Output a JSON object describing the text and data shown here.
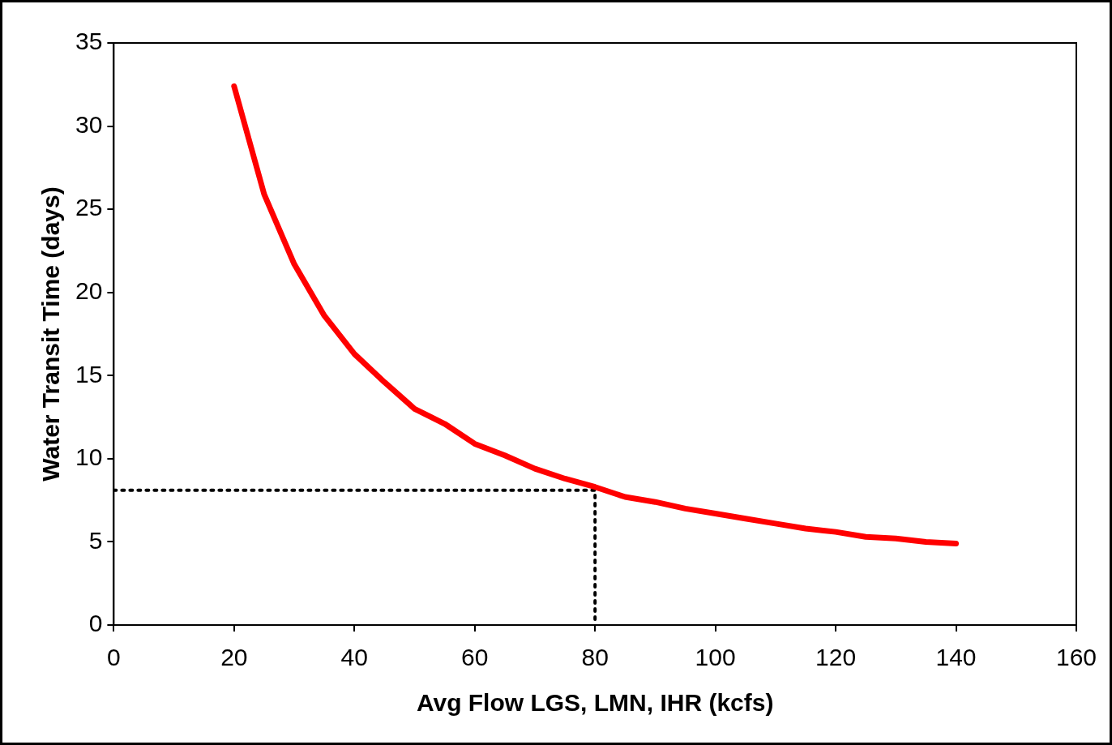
{
  "chart_data": {
    "type": "line",
    "xlabel": "Avg Flow LGS, LMN, IHR (kcfs)",
    "ylabel": "Water Transit Time (days)",
    "xlim": [
      0,
      160
    ],
    "xticks": [
      0,
      20,
      40,
      60,
      80,
      100,
      120,
      140,
      160
    ],
    "ylim": [
      0,
      35
    ],
    "yticks": [
      0,
      5,
      10,
      15,
      20,
      25,
      30,
      35
    ],
    "marker": "none",
    "legend": false,
    "series": [
      {
        "color": "#ff0000",
        "line_style": "solid",
        "x": [
          20,
          25,
          30,
          35,
          40,
          45,
          50,
          55,
          60,
          65,
          70,
          75,
          80,
          85,
          90,
          95,
          100,
          105,
          110,
          115,
          120,
          125,
          130,
          135,
          140
        ],
        "values": [
          32.4,
          25.9,
          21.7,
          18.6,
          16.3,
          14.6,
          13.0,
          12.1,
          10.9,
          10.2,
          9.4,
          8.8,
          8.3,
          7.7,
          7.4,
          7.0,
          6.7,
          6.4,
          6.1,
          5.8,
          5.6,
          5.3,
          5.2,
          5.0,
          4.9
        ]
      },
      {
        "color": "#000000",
        "line_style": "dotted",
        "x": [
          0,
          80,
          80
        ],
        "values": [
          8.1,
          8.1,
          0
        ]
      }
    ]
  }
}
